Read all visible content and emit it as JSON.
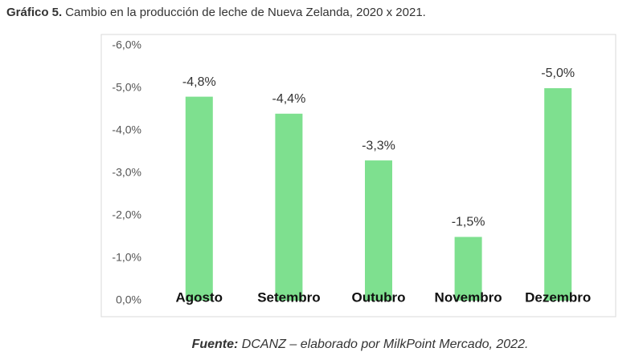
{
  "header": {
    "label": "Gráfico 5.",
    "title": "Cambio en la producción de leche de Nueva Zelanda, 2020 x 2021."
  },
  "chart_data": {
    "type": "bar",
    "categories": [
      "Agosto",
      "Setembro",
      "Outubro",
      "Novembro",
      "Dezembro"
    ],
    "values": [
      -4.8,
      -4.4,
      -3.3,
      -1.5,
      -5.0
    ],
    "value_labels": [
      "-4,8%",
      "-4,4%",
      "-3,3%",
      "-1,5%",
      "-5,0%"
    ],
    "color": "#7ee08f",
    "ylim": [
      0,
      -6
    ],
    "yticks": [
      {
        "value": 0,
        "label": "0,0%"
      },
      {
        "value": -1,
        "label": "-1,0%"
      },
      {
        "value": -2,
        "label": "-2,0%"
      },
      {
        "value": -3,
        "label": "-3,0%"
      },
      {
        "value": -4,
        "label": "-4,0%"
      },
      {
        "value": -5,
        "label": "-5,0%"
      },
      {
        "value": -6,
        "label": "-6,0%"
      }
    ],
    "grid": false
  },
  "footer": {
    "label": "Fuente:",
    "text": " DCANZ – elaborado por MilkPoint Mercado, 2022."
  }
}
